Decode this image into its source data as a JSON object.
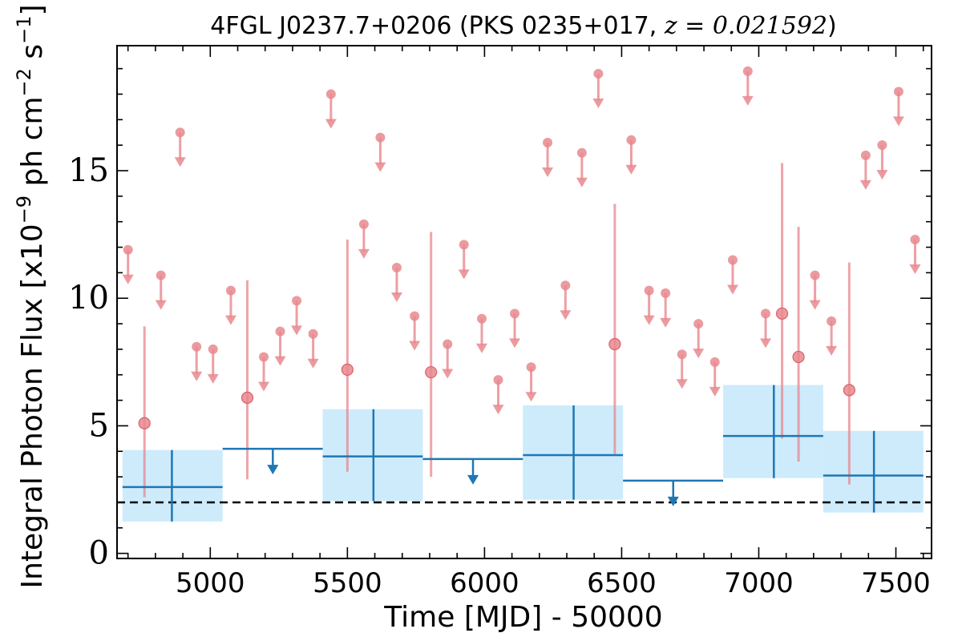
{
  "chart_data": {
    "type": "scatter",
    "title": "4FGL J0237.7+0206 (PKS 0235+017, z = 0.021592)",
    "title_parts": {
      "prefix": "4FGL J0237.7+0206 (PKS 0235+017, ",
      "math": "z = 0.021592",
      "suffix": ")"
    },
    "xlabel": "Time [MJD] - 50000",
    "ylabel": "Integral Photon Flux [x10",
    "ylabel_parts": {
      "prefix": "Integral Photon Flux [x10",
      "exp1": "−9",
      "mid": " ph cm",
      "exp2": "−2",
      "mid2": " s",
      "exp3": "−1",
      "suffix": "]"
    },
    "xlim": [
      4660,
      7630
    ],
    "ylim": [
      -0.2,
      19.9
    ],
    "x_ticks": [
      5000,
      5500,
      6000,
      6500,
      7000,
      7500
    ],
    "x_tick_labels": [
      "5000",
      "5500",
      "6000",
      "6500",
      "7000",
      "7500"
    ],
    "y_ticks": [
      0,
      5,
      10,
      15
    ],
    "y_tick_labels": [
      "0",
      "5",
      "10",
      "15"
    ],
    "grid": false,
    "legend": "none",
    "baseline_flux": 2.0,
    "colors": {
      "short_bin": "#e8888e",
      "long_bin": "#1f77b4",
      "long_bin_fill": "#cdebfb",
      "baseline": "#000000"
    },
    "short_bins_upper_limits": [
      {
        "x": 4700,
        "y": 11.9
      },
      {
        "x": 4820,
        "y": 10.9
      },
      {
        "x": 4890,
        "y": 16.5
      },
      {
        "x": 4950,
        "y": 8.1
      },
      {
        "x": 5010,
        "y": 8.0
      },
      {
        "x": 5075,
        "y": 10.3
      },
      {
        "x": 5195,
        "y": 7.7
      },
      {
        "x": 5255,
        "y": 8.7
      },
      {
        "x": 5315,
        "y": 9.9
      },
      {
        "x": 5375,
        "y": 8.6
      },
      {
        "x": 5440,
        "y": 18.0
      },
      {
        "x": 5560,
        "y": 12.9
      },
      {
        "x": 5620,
        "y": 16.3
      },
      {
        "x": 5680,
        "y": 11.2
      },
      {
        "x": 5745,
        "y": 9.3
      },
      {
        "x": 5865,
        "y": 8.2
      },
      {
        "x": 5925,
        "y": 12.1
      },
      {
        "x": 5990,
        "y": 9.2
      },
      {
        "x": 6050,
        "y": 6.8
      },
      {
        "x": 6110,
        "y": 9.4
      },
      {
        "x": 6170,
        "y": 7.3
      },
      {
        "x": 6230,
        "y": 16.1
      },
      {
        "x": 6295,
        "y": 10.5
      },
      {
        "x": 6355,
        "y": 15.7
      },
      {
        "x": 6415,
        "y": 18.8
      },
      {
        "x": 6535,
        "y": 16.2
      },
      {
        "x": 6600,
        "y": 10.3
      },
      {
        "x": 6660,
        "y": 10.2
      },
      {
        "x": 6720,
        "y": 7.8
      },
      {
        "x": 6780,
        "y": 9.0
      },
      {
        "x": 6840,
        "y": 7.5
      },
      {
        "x": 6905,
        "y": 11.5
      },
      {
        "x": 6960,
        "y": 18.9
      },
      {
        "x": 7025,
        "y": 9.4
      },
      {
        "x": 7205,
        "y": 10.9
      },
      {
        "x": 7265,
        "y": 9.1
      },
      {
        "x": 7390,
        "y": 15.6
      },
      {
        "x": 7450,
        "y": 16.0
      },
      {
        "x": 7510,
        "y": 18.1
      },
      {
        "x": 7570,
        "y": 12.3
      }
    ],
    "short_bins_detections": [
      {
        "x": 4760,
        "y": 5.1,
        "y_low": 2.2,
        "y_high": 8.9
      },
      {
        "x": 5135,
        "y": 6.1,
        "y_low": 2.9,
        "y_high": 10.7
      },
      {
        "x": 5500,
        "y": 7.2,
        "y_low": 3.2,
        "y_high": 12.3
      },
      {
        "x": 5805,
        "y": 7.1,
        "y_low": 3.0,
        "y_high": 12.6
      },
      {
        "x": 6475,
        "y": 8.2,
        "y_low": 3.9,
        "y_high": 13.7
      },
      {
        "x": 7085,
        "y": 9.4,
        "y_low": 4.5,
        "y_high": 15.3
      },
      {
        "x": 7145,
        "y": 7.7,
        "y_low": 3.6,
        "y_high": 12.8
      },
      {
        "x": 7330,
        "y": 6.4,
        "y_low": 2.7,
        "y_high": 11.4
      }
    ],
    "long_bins": [
      {
        "x_start": 4680,
        "x_end": 5045,
        "x_center": 4860,
        "y": 2.6,
        "y_low": 1.25,
        "y_high": 4.05,
        "upper_limit": false
      },
      {
        "x_start": 5045,
        "x_end": 5410,
        "x_center": 5228,
        "y": 4.1,
        "upper_limit": true
      },
      {
        "x_start": 5410,
        "x_end": 5775,
        "x_center": 5595,
        "y": 3.8,
        "y_low": 2.05,
        "y_high": 5.65,
        "upper_limit": false
      },
      {
        "x_start": 5775,
        "x_end": 6140,
        "x_center": 5958,
        "y": 3.7,
        "upper_limit": true
      },
      {
        "x_start": 6140,
        "x_end": 6505,
        "x_center": 6325,
        "y": 3.85,
        "y_low": 2.1,
        "y_high": 5.8,
        "upper_limit": false
      },
      {
        "x_start": 6505,
        "x_end": 6870,
        "x_center": 6688,
        "y": 2.85,
        "upper_limit": true
      },
      {
        "x_start": 6870,
        "x_end": 7235,
        "x_center": 7055,
        "y": 4.6,
        "y_low": 2.95,
        "y_high": 6.6,
        "upper_limit": false
      },
      {
        "x_start": 7235,
        "x_end": 7600,
        "x_center": 7420,
        "y": 3.05,
        "y_low": 1.6,
        "y_high": 4.8,
        "upper_limit": false
      }
    ]
  }
}
